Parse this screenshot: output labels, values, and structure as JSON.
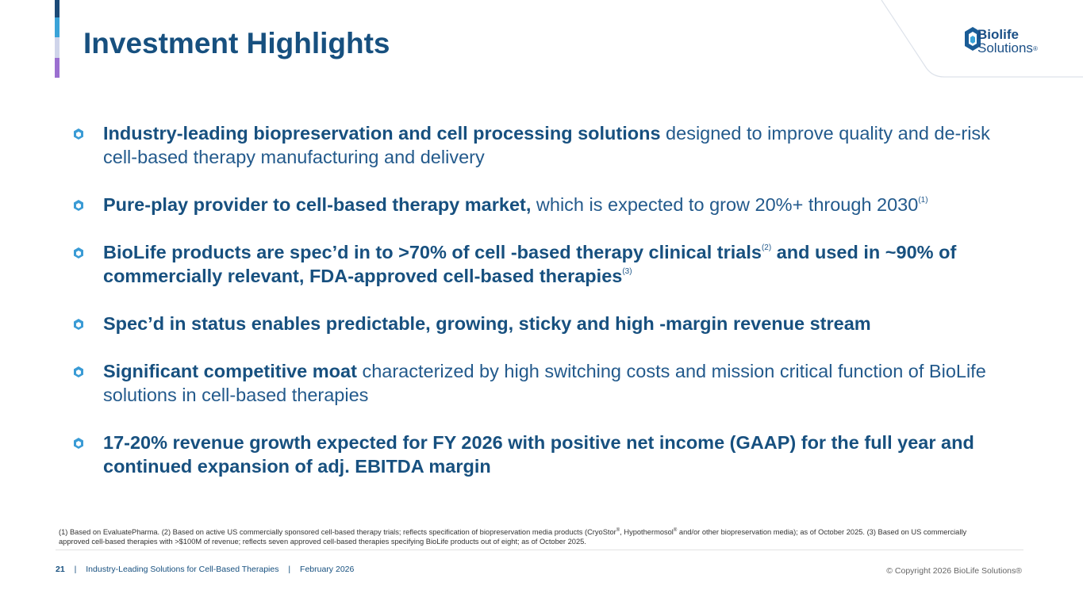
{
  "header": {
    "title": "Investment Highlights"
  },
  "logo": {
    "line1": "Biolife",
    "line2": "Solutions",
    "mark": "®"
  },
  "bullets": [
    [
      {
        "text": "Industry-leading biopreservation and cell processing solutions",
        "style": "bold"
      },
      {
        "text": " designed to improve quality and de-risk cell-based therapy manufacturing and delivery",
        "style": "regular"
      }
    ],
    [
      {
        "text": "Pure-play provider to cell-based therapy market,",
        "style": "bold"
      },
      {
        "text": " which is expected to grow 20%+ through 2030",
        "style": "regular"
      },
      {
        "text": "(1)",
        "style": "sup"
      }
    ],
    [
      {
        "text": "BioLife products are spec’d in to >70% of cell -based therapy clinical trials",
        "style": "bold"
      },
      {
        "text": "(2)",
        "style": "sup"
      },
      {
        "text": " and used in ~90% of commercially relevant, FDA-approved cell-based therapies",
        "style": "bold"
      },
      {
        "text": "(3)",
        "style": "sup"
      }
    ],
    [
      {
        "text": "Spec’d in status enables predictable, growing, sticky and high -margin revenue stream",
        "style": "bold"
      }
    ],
    [
      {
        "text": "Significant competitive moat",
        "style": "bold"
      },
      {
        "text": " characterized by high switching costs and mission critical function of BioLife solutions in cell-based therapies",
        "style": "regular"
      }
    ],
    [
      {
        "text": "17-20% revenue growth expected for FY 2026 with positive net income (GAAP) for the full year and continued expansion of adj. EBITDA margin",
        "style": "bold"
      }
    ]
  ],
  "footnote": [
    {
      "text": "(1) Based on EvaluatePharma. (2) Based on active US commercially sponsored cell-based therapy trials; reflects specification of biopreservation media products (CryoStor",
      "style": "regular"
    },
    {
      "text": "®",
      "style": "sup"
    },
    {
      "text": ", Hypothermosol",
      "style": "regular"
    },
    {
      "text": "®",
      "style": "sup"
    },
    {
      "text": " and/or other biopreservation media); as of October 2025. (3) Based on US commercially approved cell-based therapies with >$100M of revenue; reflects seven approved cell-based therapies specifying BioLife products out of eight; as of October 2025.",
      "style": "regular"
    }
  ],
  "footer": {
    "page": "21",
    "separator": "|",
    "subtitle": "Industry-Leading Solutions for Cell-Based Therapies",
    "date": "February 2026",
    "copyright": "© Copyright 2026 BioLife Solutions®"
  }
}
